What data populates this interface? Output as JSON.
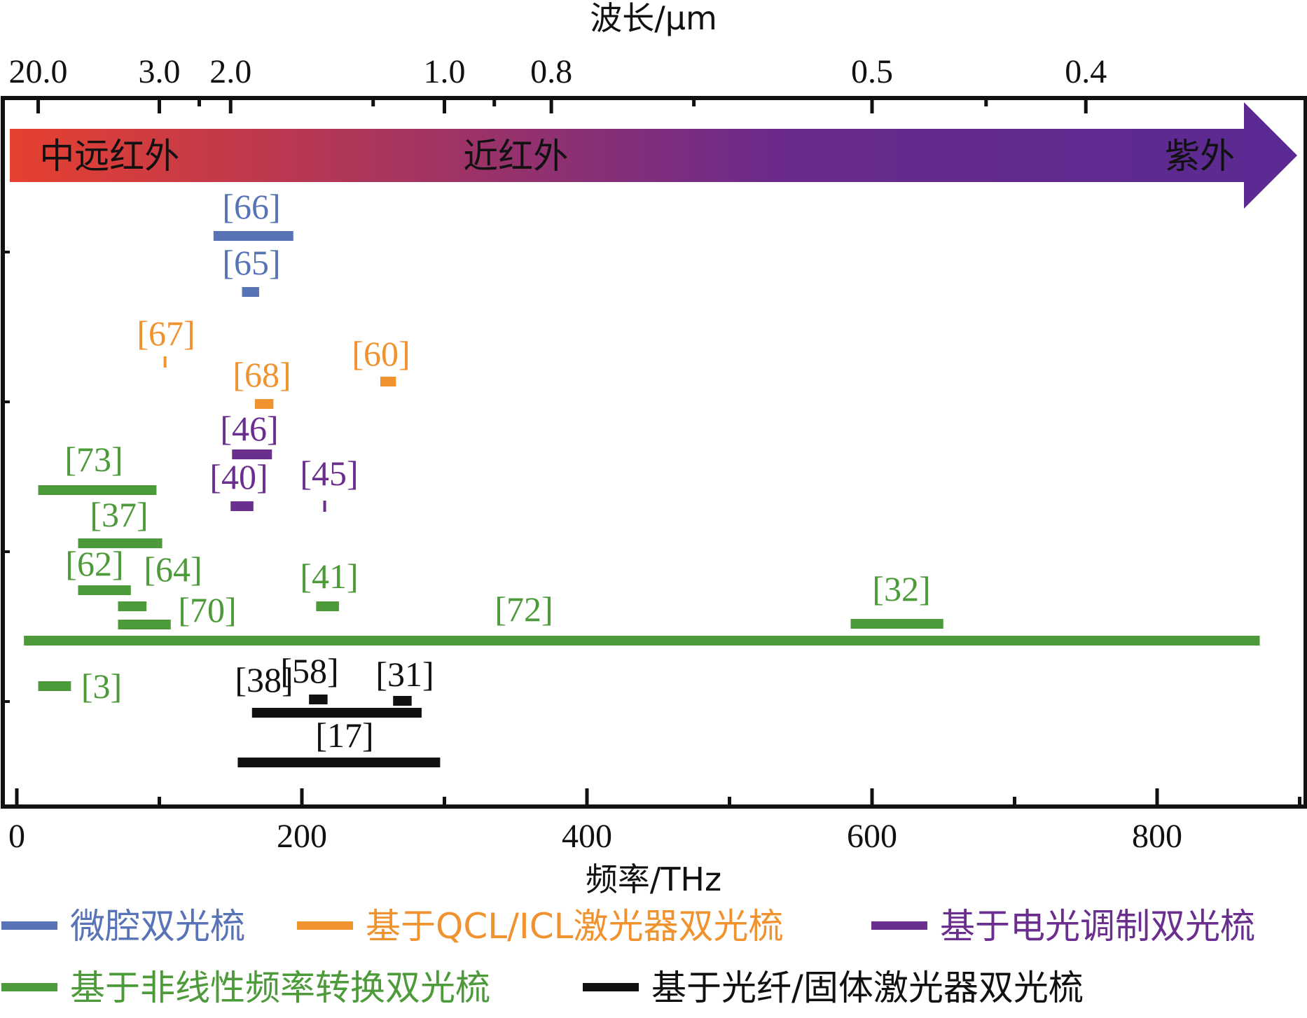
{
  "chart_data": {
    "type": "range",
    "top_axis": {
      "label": "波长/μm",
      "ticks": [
        {
          "label": "20.0",
          "value": 15
        },
        {
          "label": "3.0",
          "value": 100
        },
        {
          "label": "2.0",
          "value": 150
        },
        {
          "label": "1.0",
          "value": 300
        },
        {
          "label": "0.8",
          "value": 375
        },
        {
          "label": "0.5",
          "value": 600
        },
        {
          "label": "0.4",
          "value": 750
        }
      ]
    },
    "bottom_axis": {
      "label": "频率/THz",
      "ticks": [
        {
          "label": "0",
          "value": 0
        },
        {
          "label": "200",
          "value": 200
        },
        {
          "label": "400",
          "value": 400
        },
        {
          "label": "600",
          "value": 600
        },
        {
          "label": "800",
          "value": 800
        }
      ],
      "xlim": [
        -10,
        900
      ]
    },
    "spectrum_arrow": {
      "labels": [
        {
          "text": "中远红外",
          "value": 65
        },
        {
          "text": "近红外",
          "value": 350
        },
        {
          "text": "紫外",
          "value": 830
        }
      ],
      "colors": [
        "#e64030",
        "#6a2a8c",
        "#5a2a92"
      ]
    },
    "categories": [
      {
        "key": "microcavity",
        "name": "微腔双光梳",
        "color": "#5874b6"
      },
      {
        "key": "qcl",
        "name": "基于QCL/ICL激光器双光梳",
        "color": "#f0922e"
      },
      {
        "key": "eo",
        "name": "基于电光调制双光梳",
        "color": "#6a2e8e"
      },
      {
        "key": "nonlinear",
        "name": "基于非线性频率转换双光梳",
        "color": "#4c9a3a"
      },
      {
        "key": "fiber",
        "name": "基于光纤/固体激光器双光梳",
        "color": "#111111"
      }
    ],
    "ranges": [
      {
        "ref": "[66]",
        "cat": "microcavity",
        "start": 138,
        "end": 194
      },
      {
        "ref": "[65]",
        "cat": "microcavity",
        "start": 158,
        "end": 170
      },
      {
        "ref": "[67]",
        "cat": "qcl",
        "start": 103,
        "end": 104.5
      },
      {
        "ref": "[60]",
        "cat": "qcl",
        "start": 255,
        "end": 266
      },
      {
        "ref": "[68]",
        "cat": "qcl",
        "start": 167,
        "end": 180
      },
      {
        "ref": "[46]",
        "cat": "eo",
        "start": 151,
        "end": 179
      },
      {
        "ref": "[40]",
        "cat": "eo",
        "start": 150,
        "end": 166
      },
      {
        "ref": "[45]",
        "cat": "eo",
        "start": 215,
        "end": 216.5
      },
      {
        "ref": "[73]",
        "cat": "nonlinear",
        "start": 15,
        "end": 98
      },
      {
        "ref": "[37]",
        "cat": "nonlinear",
        "start": 43,
        "end": 102
      },
      {
        "ref": "[62]",
        "cat": "nonlinear",
        "start": 43,
        "end": 80
      },
      {
        "ref": "[64]",
        "cat": "nonlinear",
        "start": 71,
        "end": 91
      },
      {
        "ref": "[41]",
        "cat": "nonlinear",
        "start": 210,
        "end": 226
      },
      {
        "ref": "[70]",
        "cat": "nonlinear",
        "start": 71,
        "end": 108
      },
      {
        "ref": "[32]",
        "cat": "nonlinear",
        "start": 585,
        "end": 650
      },
      {
        "ref": "[72]",
        "cat": "nonlinear",
        "start": 5,
        "end": 872
      },
      {
        "ref": "[3]",
        "cat": "nonlinear",
        "start": 15,
        "end": 38
      },
      {
        "ref": "[58]",
        "cat": "fiber",
        "start": 205,
        "end": 218
      },
      {
        "ref": "[31]",
        "cat": "fiber",
        "start": 264,
        "end": 277
      },
      {
        "ref": "[38]",
        "cat": "fiber",
        "start": 165,
        "end": 284
      },
      {
        "ref": "[17]",
        "cat": "fiber",
        "start": 155,
        "end": 297
      }
    ]
  }
}
